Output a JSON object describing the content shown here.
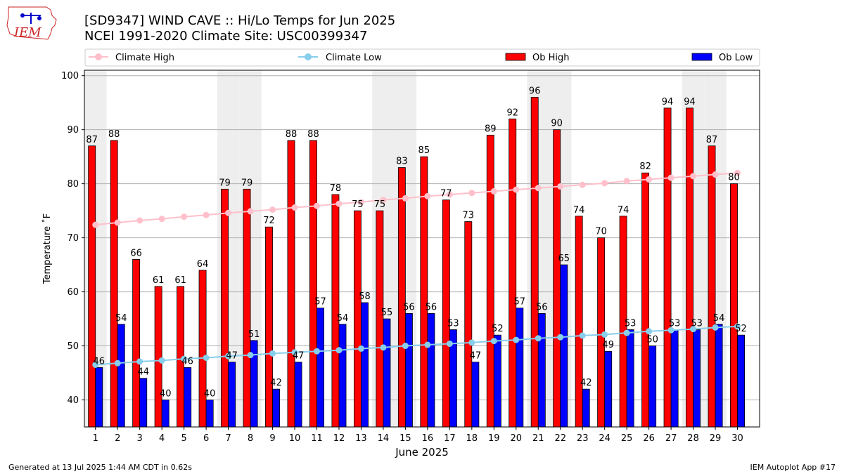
{
  "logo": {
    "text": "IEM"
  },
  "title": {
    "line1": "[SD9347] WIND CAVE :: Hi/Lo Temps for Jun 2025",
    "line2": "NCEI 1991-2020 Climate Site: USC00399347"
  },
  "footer": {
    "left": "Generated at 13 Jul 2025 1:44 AM CDT in 0.62s",
    "right": "IEM Autoplot App #17"
  },
  "colors": {
    "ob_high": "#ff0000",
    "ob_low": "#0000ff",
    "climate_high": "#ffc0cb",
    "climate_low": "#87ceeb",
    "weekend_band": "#eeeeee",
    "grid": "#b0b0b0"
  },
  "chart_data": {
    "type": "bar",
    "xlabel": "June 2025",
    "ylabel": "Temperature $^\\circ$F",
    "ylabel_display": "Temperature ˚F",
    "ylim": [
      35,
      101
    ],
    "yticks": [
      40,
      50,
      60,
      70,
      80,
      90,
      100
    ],
    "grid": true,
    "legend_placement": "top",
    "categories": [
      "1",
      "2",
      "3",
      "4",
      "5",
      "6",
      "7",
      "8",
      "9",
      "10",
      "11",
      "12",
      "13",
      "14",
      "15",
      "16",
      "17",
      "18",
      "19",
      "20",
      "21",
      "22",
      "23",
      "24",
      "25",
      "26",
      "27",
      "28",
      "29",
      "30"
    ],
    "weekend_days": [
      1,
      7,
      8,
      14,
      15,
      21,
      22,
      28,
      29
    ],
    "series": [
      {
        "name": "Climate High",
        "kind": "line",
        "values": [
          72.4,
          72.8,
          73.2,
          73.5,
          73.9,
          74.2,
          74.6,
          74.9,
          75.2,
          75.6,
          75.9,
          76.3,
          76.6,
          77.0,
          77.3,
          77.7,
          78.0,
          78.3,
          78.6,
          78.9,
          79.2,
          79.5,
          79.8,
          80.1,
          80.5,
          80.8,
          81.1,
          81.4,
          81.7,
          82.0
        ]
      },
      {
        "name": "Climate Low",
        "kind": "line",
        "values": [
          46.5,
          46.8,
          47.1,
          47.3,
          47.6,
          47.8,
          48.1,
          48.3,
          48.6,
          48.8,
          49.0,
          49.2,
          49.5,
          49.7,
          50.0,
          50.2,
          50.4,
          50.6,
          50.9,
          51.1,
          51.4,
          51.6,
          51.9,
          52.1,
          52.4,
          52.7,
          52.9,
          53.1,
          53.4,
          53.6
        ]
      },
      {
        "name": "Ob High",
        "kind": "bar",
        "values": [
          87,
          88,
          66,
          61,
          61,
          64,
          79,
          79,
          72,
          88,
          88,
          78,
          75,
          75,
          83,
          85,
          77,
          73,
          89,
          92,
          96,
          90,
          74,
          70,
          74,
          82,
          94,
          94,
          87,
          80
        ]
      },
      {
        "name": "Ob Low",
        "kind": "bar",
        "values": [
          46,
          54,
          44,
          40,
          46,
          40,
          47,
          51,
          42,
          47,
          57,
          54,
          58,
          55,
          56,
          56,
          53,
          47,
          52,
          57,
          56,
          65,
          42,
          49,
          53,
          50,
          53,
          53,
          54,
          52
        ]
      }
    ]
  }
}
